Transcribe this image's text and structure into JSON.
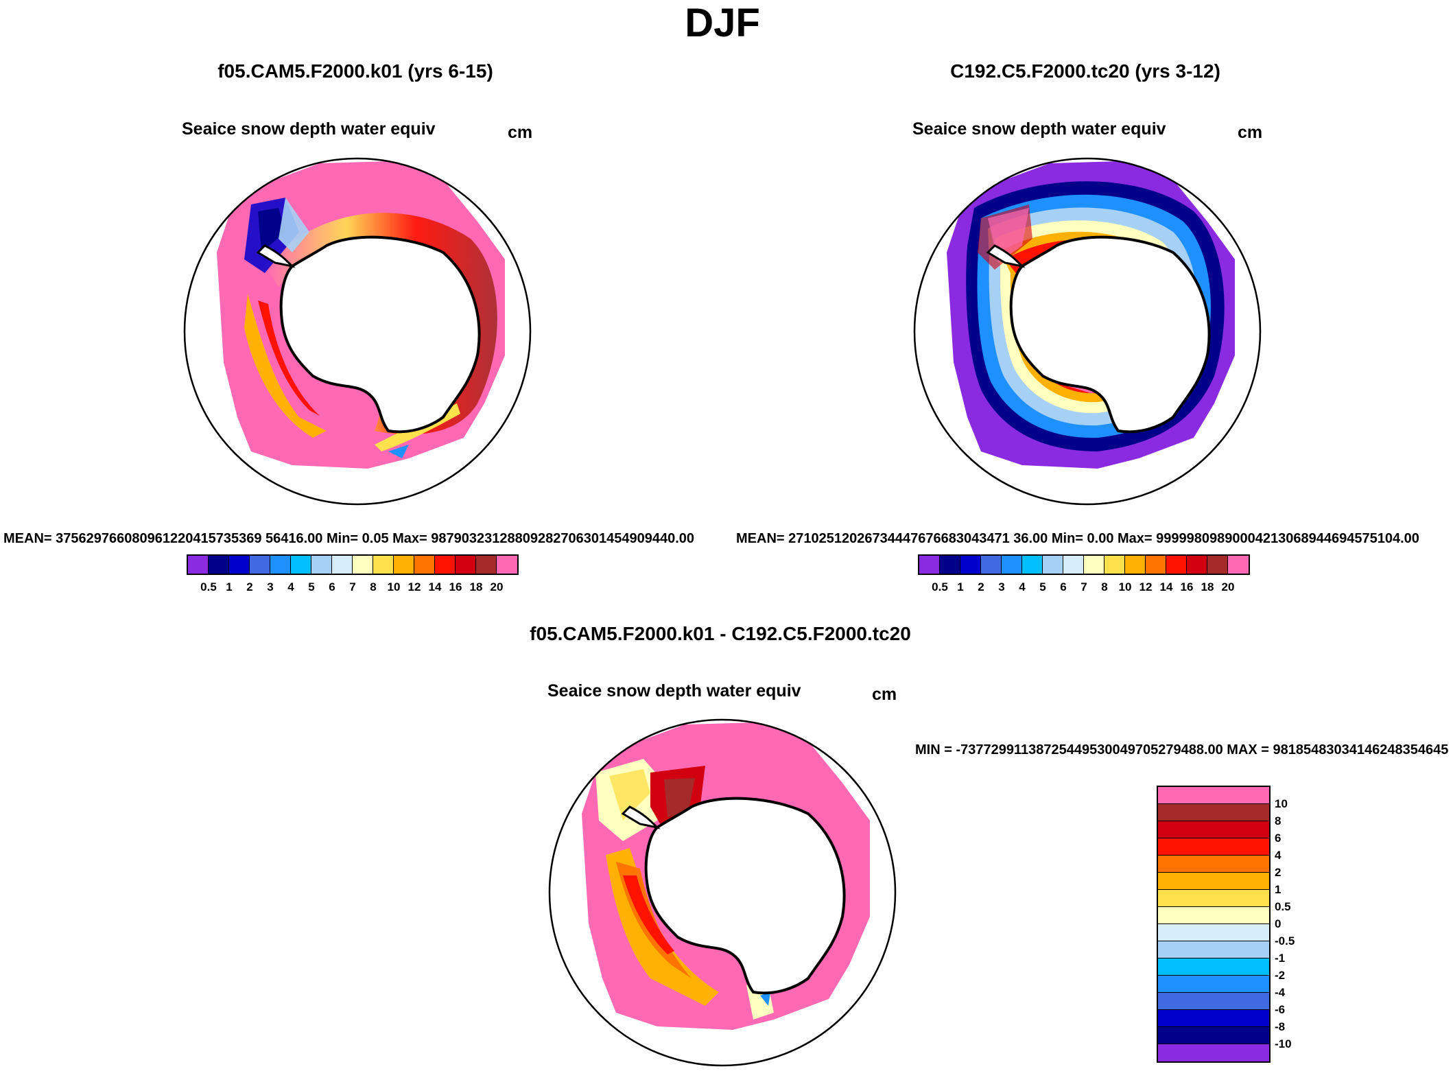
{
  "title": "DJF",
  "panels": [
    {
      "case": "f05.CAM5.F2000.k01 (yrs 6-15)",
      "variable": "Seaice snow depth water equiv",
      "units": "cm",
      "stats": "MEAN= 375629766080961220415735369 56416.00  Min=   0.05  Max= 98790323128809282706301454909440.00"
    },
    {
      "case": "C192.C5.F2000.tc20 (yrs 3-12)",
      "variable": "Seaice snow depth water equiv",
      "units": "cm",
      "stats": "MEAN= 27102512026734447676683043471 36.00  Min=   0.00  Max= 99999809890004213068944694575104.00"
    },
    {
      "case": "f05.CAM5.F2000.k01 - C192.C5.F2000.tc20",
      "variable": "Seaice snow depth water equiv",
      "units": "cm",
      "stats": "MIN = -73772991138725449530049705279488.00 MAX = 98185483034146248354645"
    }
  ],
  "chart_data": {
    "type": "heatmap",
    "projection": "south-polar-stereographic",
    "colorbar_abs": {
      "levels": [
        "0.5",
        "1",
        "2",
        "3",
        "4",
        "5",
        "6",
        "7",
        "8",
        "10",
        "12",
        "14",
        "16",
        "18",
        "20"
      ],
      "colors": [
        "#8a2be2",
        "#00008b",
        "#0000cd",
        "#4169e1",
        "#1e90ff",
        "#00bfff",
        "#a6d0f5",
        "#d6ecf8",
        "#ffffc0",
        "#ffe14d",
        "#ffb000",
        "#ff7400",
        "#ff1200",
        "#d00010",
        "#a52a2a",
        "#ff69b4"
      ]
    },
    "colorbar_diff": {
      "levels": [
        "10",
        "8",
        "6",
        "4",
        "2",
        "1",
        "0.5",
        "0",
        "-0.5",
        "-1",
        "-2",
        "-4",
        "-6",
        "-8",
        "-10"
      ],
      "colors": [
        "#ff69b4",
        "#a52a2a",
        "#d00010",
        "#ff1200",
        "#ff7400",
        "#ffb000",
        "#ffe14d",
        "#ffffc0",
        "#d6ecf8",
        "#a6d0f5",
        "#00bfff",
        "#1e90ff",
        "#4169e1",
        "#0000cd",
        "#00008b",
        "#8a2be2"
      ]
    }
  }
}
